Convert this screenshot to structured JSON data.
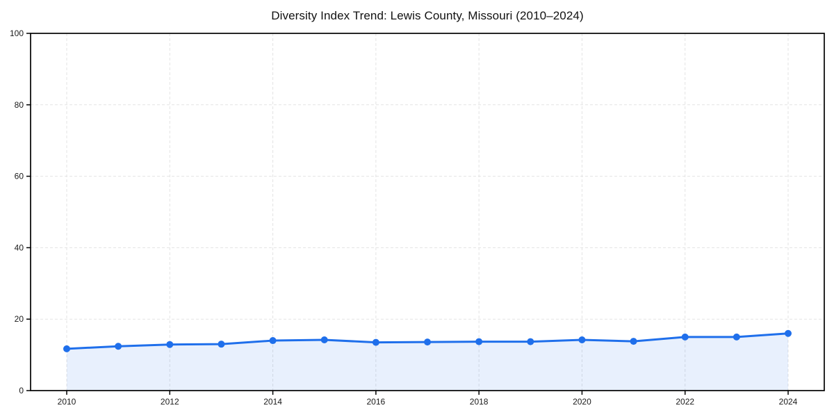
{
  "title": "Diversity Index Trend: Lewis County, Missouri (2010–2024)",
  "chart_data": {
    "type": "line",
    "title": "Diversity Index Trend: Lewis County, Missouri (2010–2024)",
    "x": [
      2010,
      2011,
      2012,
      2013,
      2014,
      2015,
      2016,
      2017,
      2018,
      2019,
      2020,
      2021,
      2022,
      2023,
      2024
    ],
    "series": [
      {
        "name": "Diversity Index",
        "values": [
          11.7,
          12.4,
          12.9,
          13.0,
          14.0,
          14.2,
          13.5,
          13.6,
          13.7,
          13.7,
          14.2,
          13.8,
          15.0,
          15.0,
          16.0
        ]
      }
    ],
    "xticks": [
      2010,
      2012,
      2014,
      2016,
      2018,
      2020,
      2022,
      2024
    ],
    "yticks": [
      0,
      20,
      40,
      60,
      80,
      100
    ],
    "ylim": [
      0,
      100
    ],
    "xlabel": "",
    "ylabel": "",
    "grid": true,
    "grid_style": "dashed",
    "legend_position": "none",
    "line_color": "#1f6feb",
    "marker_color": "#1f6feb",
    "marker_shape": "circle",
    "fill_color": "rgba(31,111,235,0.10)",
    "grid_color": "#e3e3e3",
    "axis_color": "#000000",
    "tick_label_color": "#1a1a1a",
    "background_color": "#ffffff"
  }
}
